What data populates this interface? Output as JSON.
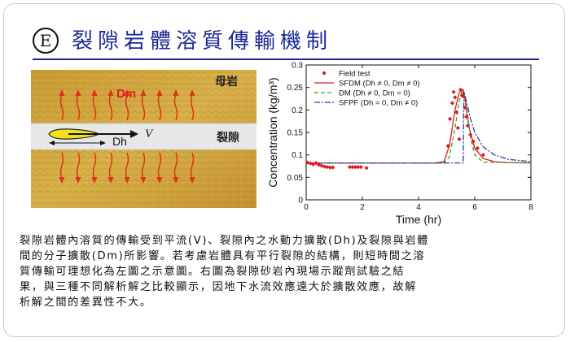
{
  "badge": "E",
  "title": "裂隙岩體溶質傳輸機制",
  "diagram": {
    "matrix_label": "母岩",
    "fracture_label": "裂隙",
    "dm_label": "Dm",
    "dh_label": "Dh",
    "v_label": "V"
  },
  "chart_data": {
    "type": "line",
    "xlabel": "Time (hr)",
    "ylabel": "Concentration (kg/m³)",
    "xlim": [
      0,
      8
    ],
    "ylim": [
      0,
      0.3
    ],
    "xticks": [
      "0",
      "2",
      "4",
      "6",
      "8"
    ],
    "yticks": [
      "0",
      "0.05",
      "0.1",
      "0.15",
      "0.2",
      "0.25",
      "0.3"
    ],
    "legend": [
      "Field test",
      "SFDM (Dh ≠ 0, Dm ≠ 0)",
      "DM (Dh ≠ 0, Dm = 0)",
      "SFPF (Dh = 0, Dm ≠ 0)"
    ],
    "legend_position": "top-right",
    "colors": {
      "field": "#e01818",
      "sfdm": "#e01818",
      "dm": "#3a9a3a",
      "sfpf": "#2a3aa8"
    },
    "field_test": [
      [
        0.05,
        0.083
      ],
      [
        0.15,
        0.081
      ],
      [
        0.25,
        0.079
      ],
      [
        0.35,
        0.082
      ],
      [
        0.45,
        0.078
      ],
      [
        0.55,
        0.076
      ],
      [
        0.65,
        0.074
      ],
      [
        0.75,
        0.073
      ],
      [
        0.85,
        0.072
      ],
      [
        0.95,
        0.072
      ],
      [
        1.55,
        0.073
      ],
      [
        1.65,
        0.073
      ],
      [
        1.75,
        0.073
      ],
      [
        1.85,
        0.073
      ],
      [
        1.95,
        0.073
      ],
      [
        2.15,
        0.071
      ],
      [
        5.05,
        0.12
      ],
      [
        5.12,
        0.18
      ],
      [
        5.2,
        0.215
      ],
      [
        5.25,
        0.24
      ],
      [
        5.3,
        0.228
      ],
      [
        5.35,
        0.195
      ],
      [
        5.4,
        0.16
      ],
      [
        5.45,
        0.135
      ],
      [
        5.5,
        0.245
      ],
      [
        5.55,
        0.232
      ],
      [
        5.6,
        0.23
      ],
      [
        5.65,
        0.205
      ],
      [
        5.7,
        0.185
      ],
      [
        5.75,
        0.165
      ],
      [
        5.85,
        0.145
      ],
      [
        5.95,
        0.13
      ],
      [
        6.1,
        0.115
      ],
      [
        6.3,
        0.1
      ]
    ],
    "series": [
      {
        "name": "SFDM (Dh ≠ 0, Dm ≠ 0)",
        "style": "solid",
        "x": [
          0,
          4.6,
          4.9,
          5.1,
          5.3,
          5.45,
          5.55,
          5.65,
          5.8,
          6.0,
          6.3,
          6.7,
          7.2,
          8
        ],
        "y": [
          0.082,
          0.082,
          0.085,
          0.12,
          0.2,
          0.238,
          0.245,
          0.225,
          0.16,
          0.115,
          0.092,
          0.085,
          0.083,
          0.082
        ]
      },
      {
        "name": "DM (Dh ≠ 0, Dm = 0)",
        "style": "dashed",
        "x": [
          0,
          4.9,
          5.1,
          5.3,
          5.45,
          5.55,
          5.6,
          5.7,
          5.85,
          6.0,
          6.3,
          8
        ],
        "y": [
          0.082,
          0.082,
          0.095,
          0.16,
          0.22,
          0.243,
          0.245,
          0.21,
          0.14,
          0.1,
          0.084,
          0.082
        ]
      },
      {
        "name": "SFPF (Dh = 0, Dm ≠ 0)",
        "style": "dashdot",
        "x": [
          0,
          5.59,
          5.6,
          5.62,
          5.7,
          5.85,
          6.0,
          6.3,
          6.7,
          7.2,
          8
        ],
        "y": [
          0.082,
          0.082,
          0.18,
          0.24,
          0.22,
          0.18,
          0.15,
          0.118,
          0.1,
          0.09,
          0.085
        ]
      }
    ]
  },
  "paragraph": [
    "裂隙岩體內溶質的傳輸受到平流(V)、裂隙內之水動力擴散(Dh)及裂隙與岩體",
    "間的分子擴散(Dm)所影響。若考慮岩體具有平行裂隙的結構，則短時間之溶",
    "質傳輸可理想化為左圖之示意圖。右圖為裂隙砂岩內現場示蹤劑試驗之結",
    "果，與三種不同解析解之比較顯示，因地下水流效應遠大於擴散效應，故解",
    "析解之間的差異性不大。"
  ]
}
